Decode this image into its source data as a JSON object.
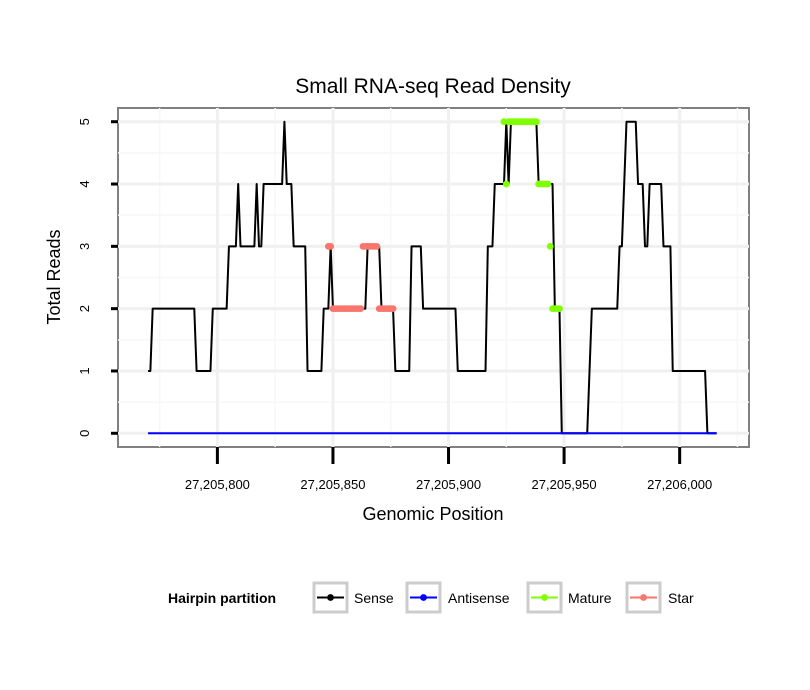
{
  "chart_data": {
    "type": "line",
    "title": "Small RNA-seq Read Density",
    "xlabel": "Genomic Position",
    "ylabel": "Total Reads",
    "xlim": [
      27205757,
      27206030
    ],
    "ylim": [
      -0.22,
      5.22
    ],
    "x_ticks": [
      27205800,
      27205850,
      27205900,
      27205950,
      27206000
    ],
    "x_tick_labels": [
      "27,205,800",
      "27,205,850",
      "27,205,900",
      "27,205,950",
      "27,206,000"
    ],
    "y_ticks": [
      0,
      1,
      2,
      3,
      4,
      5
    ],
    "y_tick_labels": [
      "0",
      "1",
      "2",
      "3",
      "4",
      "5"
    ],
    "grid": true,
    "legend": {
      "title": "Hairpin partition",
      "position": "bottom",
      "entries": [
        "Sense",
        "Antisense",
        "Mature",
        "Star"
      ]
    },
    "series": [
      {
        "name": "Sense",
        "color": "#000000",
        "kind": "line",
        "x": [
          27205770,
          27205771,
          27205772,
          27205790,
          27205791,
          27205797,
          27205798,
          27205804,
          27205805,
          27205808,
          27205809,
          27205810,
          27205816,
          27205817,
          27205818,
          27205819,
          27205820,
          27205828,
          27205829,
          27205830,
          27205832,
          27205833,
          27205838,
          27205839,
          27205845,
          27205846,
          27205848,
          27205849,
          27205850,
          27205864,
          27205865,
          27205870,
          27205871,
          27205876,
          27205877,
          27205883,
          27205884,
          27205888,
          27205889,
          27205903,
          27205904,
          27205916,
          27205917,
          27205919,
          27205920,
          27205924,
          27205925,
          27205926,
          27205927,
          27205938,
          27205939,
          27205945,
          27205946,
          27205947,
          27205948,
          27205949,
          27205960,
          27205961,
          27205962,
          27205973,
          27205974,
          27205975,
          27205976,
          27205977,
          27205981,
          27205982,
          27205984,
          27205985,
          27205986,
          27205987,
          27205992,
          27205993,
          27205996,
          27205997,
          27206011,
          27206012,
          27206016
        ],
        "y": [
          1,
          1,
          2,
          2,
          1,
          1,
          2,
          2,
          3,
          3,
          4,
          3,
          3,
          4,
          3,
          3,
          4,
          4,
          5,
          4,
          4,
          3,
          3,
          1,
          1,
          2,
          2,
          3,
          2,
          2,
          3,
          3,
          2,
          2,
          1,
          1,
          3,
          3,
          2,
          2,
          1,
          1,
          3,
          3,
          4,
          4,
          5,
          4,
          5,
          5,
          4,
          4,
          2,
          2,
          2,
          0,
          0,
          1,
          2,
          2,
          3,
          3,
          4,
          5,
          5,
          4,
          4,
          3,
          3,
          4,
          4,
          3,
          3,
          1,
          1,
          0,
          0
        ]
      },
      {
        "name": "Antisense",
        "color": "#0000FF",
        "kind": "line",
        "x": [
          27205770,
          27206016
        ],
        "y": [
          0,
          0
        ]
      },
      {
        "name": "Mature",
        "color": "#7FFF00",
        "kind": "points",
        "x": [
          27205924,
          27205925,
          27205926,
          27205927,
          27205928,
          27205929,
          27205930,
          27205931,
          27205932,
          27205933,
          27205934,
          27205935,
          27205936,
          27205937,
          27205938,
          27205939,
          27205940,
          27205941,
          27205942,
          27205943,
          27205944,
          27205945,
          27205946,
          27205947,
          27205948
        ],
        "y": [
          5,
          4,
          5,
          5,
          5,
          5,
          5,
          5,
          5,
          5,
          5,
          5,
          5,
          5,
          5,
          4,
          4,
          4,
          4,
          4,
          3,
          2,
          2,
          2,
          2
        ]
      },
      {
        "name": "Star",
        "color": "#F8766D",
        "kind": "points",
        "x": [
          27205848,
          27205849,
          27205850,
          27205851,
          27205852,
          27205853,
          27205854,
          27205855,
          27205856,
          27205857,
          27205858,
          27205859,
          27205860,
          27205861,
          27205862,
          27205863,
          27205864,
          27205865,
          27205866,
          27205867,
          27205868,
          27205869,
          27205870,
          27205871,
          27205872,
          27205873,
          27205874,
          27205875,
          27205876
        ],
        "y": [
          3,
          3,
          2,
          2,
          2,
          2,
          2,
          2,
          2,
          2,
          2,
          2,
          2,
          2,
          2,
          3,
          3,
          3,
          3,
          3,
          3,
          3,
          2,
          2,
          2,
          2,
          2,
          2,
          2
        ]
      }
    ]
  }
}
